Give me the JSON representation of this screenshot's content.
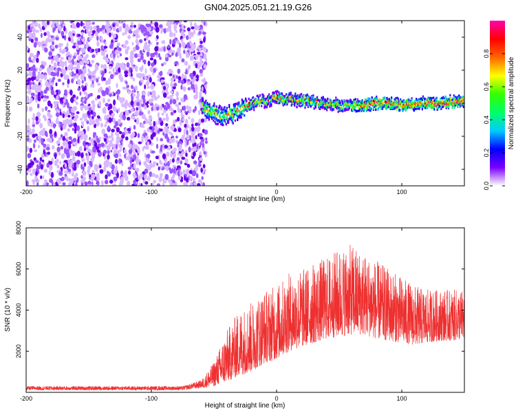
{
  "title": "GN04.2025.051.21.19.G26",
  "chart_data": [
    {
      "type": "heatmap",
      "xlabel": "Height of straight line (km)",
      "ylabel": "Frequency (Hz)",
      "xlim": [
        -200,
        150
      ],
      "ylim": [
        -50,
        50
      ],
      "xticks": [
        -200,
        -100,
        0,
        100
      ],
      "yticks": [
        -40,
        -20,
        0,
        20,
        40
      ],
      "colorbar": {
        "label": "Normalized spectral amplitude",
        "range": [
          0,
          1
        ],
        "ticks": [
          "0.0",
          "0.2",
          "0.4",
          "0.6",
          "0.8"
        ],
        "colors": [
          "#ffffff",
          "#7a00ff",
          "#0000ff",
          "#00ccff",
          "#00ff66",
          "#33ff00",
          "#ffff00",
          "#ff6600",
          "#ff0000",
          "#ff00aa"
        ]
      },
      "regions": [
        {
          "name": "noise",
          "x_range": [
            -200,
            -60
          ],
          "freq_range": [
            -50,
            50
          ],
          "amplitude": [
            0.05,
            0.15
          ]
        },
        {
          "name": "signal",
          "x_range": [
            -60,
            150
          ],
          "center_freq_trend": [
            [
              -60,
              -2
            ],
            [
              -45,
              -8
            ],
            [
              -35,
              -6
            ],
            [
              -20,
              0
            ],
            [
              0,
              3
            ],
            [
              30,
              1
            ],
            [
              60,
              -2
            ],
            [
              80,
              0
            ],
            [
              100,
              -1
            ],
            [
              120,
              0
            ],
            [
              150,
              1
            ]
          ],
          "amplitude": [
            0.3,
            0.9
          ]
        }
      ]
    },
    {
      "type": "line",
      "xlabel": "Height of straight line (km)",
      "ylabel": "SNR (10 * v/v)",
      "xlim": [
        -200,
        150
      ],
      "ylim": [
        0,
        8000
      ],
      "xticks": [
        -200,
        -100,
        0,
        100
      ],
      "yticks": [
        2000,
        4000,
        6000,
        8000
      ],
      "color": "#ee3030",
      "envelope": {
        "x": [
          -200,
          -150,
          -100,
          -75,
          -60,
          -50,
          -40,
          -30,
          -20,
          -10,
          0,
          10,
          20,
          30,
          40,
          50,
          60,
          70,
          80,
          90,
          100,
          110,
          120,
          130,
          140,
          150
        ],
        "low": [
          100,
          100,
          100,
          100,
          200,
          300,
          500,
          800,
          1000,
          1400,
          1600,
          2000,
          2200,
          2400,
          2600,
          2700,
          2800,
          2800,
          2600,
          2500,
          2400,
          2300,
          2400,
          2500,
          2500,
          2600
        ],
        "high": [
          300,
          300,
          300,
          300,
          600,
          1500,
          3000,
          4000,
          4400,
          5000,
          5200,
          5800,
          6000,
          6300,
          6600,
          7000,
          7200,
          6800,
          6400,
          6000,
          5600,
          5200,
          5000,
          5000,
          5000,
          5000
        ]
      }
    }
  ]
}
